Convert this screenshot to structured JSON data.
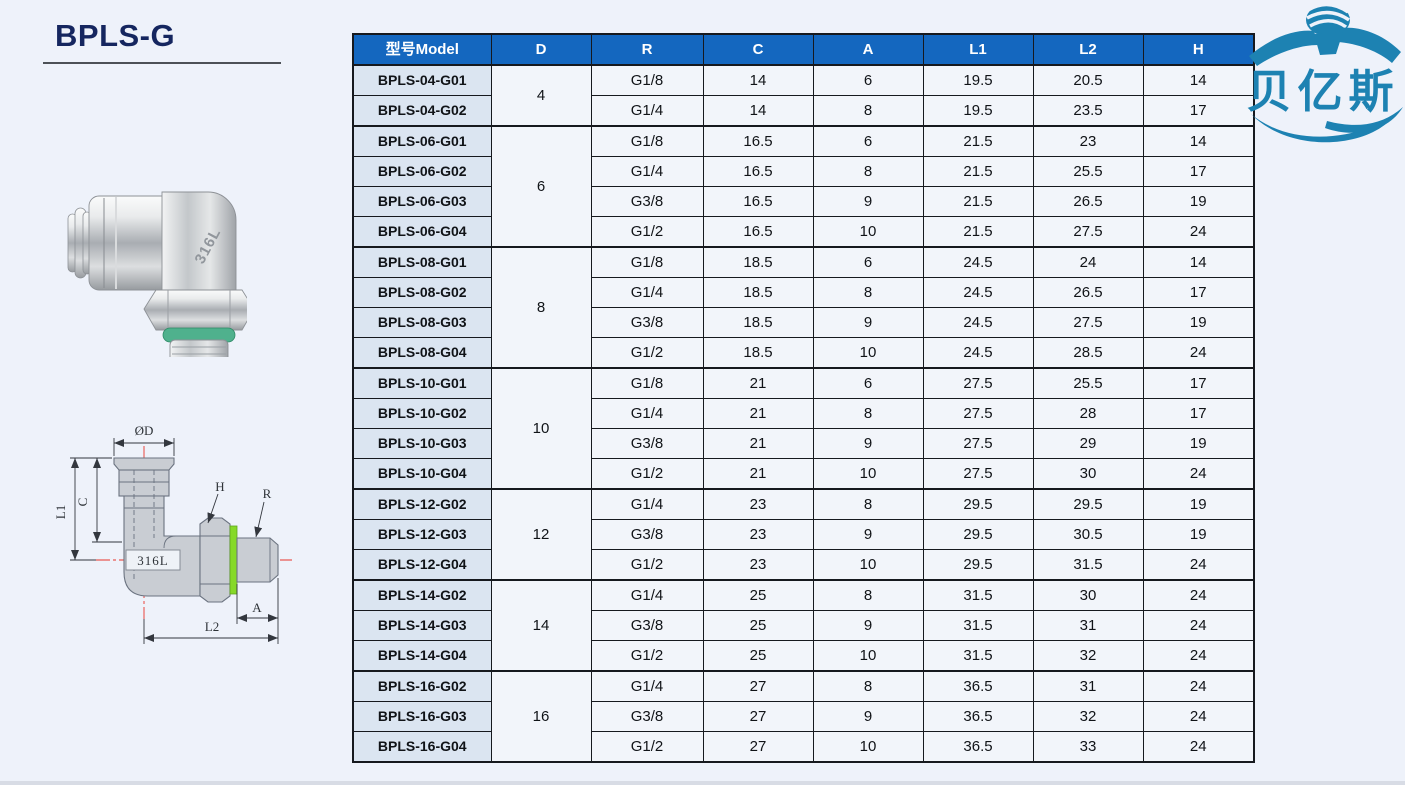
{
  "page": {
    "title": "BPLS-G",
    "background": "#eef2fa",
    "bottom_strip_color": "#d8dce5",
    "title_color": "#15265f"
  },
  "logo": {
    "text": "贝亿斯",
    "color": "#1d82b2"
  },
  "photo": {
    "stamp": "316L",
    "oring_color": "#4fb18d"
  },
  "drawing": {
    "stamp": "316L",
    "labels": {
      "diameter": "ØD",
      "c": "C",
      "l1": "L1",
      "h": "H",
      "r": "R",
      "a": "A",
      "l2": "L2"
    },
    "centerline_color": "#e8342b",
    "highlight_green": "#86d928"
  },
  "table": {
    "columns": [
      "型号Model",
      "D",
      "R",
      "C",
      "A",
      "L1",
      "L2",
      "H"
    ],
    "header_bg": "#1467bf",
    "header_text_color": "#ffffff",
    "model_cell_bg": "#dbe5f1",
    "cell_bg": "#f2f5fa",
    "groups": [
      {
        "d": "4",
        "rows": [
          {
            "model": "BPLS-04-G01",
            "r": "G1/8",
            "c": "14",
            "a": "6",
            "l1": "19.5",
            "l2": "20.5",
            "h": "14"
          },
          {
            "model": "BPLS-04-G02",
            "r": "G1/4",
            "c": "14",
            "a": "8",
            "l1": "19.5",
            "l2": "23.5",
            "h": "17"
          }
        ]
      },
      {
        "d": "6",
        "rows": [
          {
            "model": "BPLS-06-G01",
            "r": "G1/8",
            "c": "16.5",
            "a": "6",
            "l1": "21.5",
            "l2": "23",
            "h": "14"
          },
          {
            "model": "BPLS-06-G02",
            "r": "G1/4",
            "c": "16.5",
            "a": "8",
            "l1": "21.5",
            "l2": "25.5",
            "h": "17"
          },
          {
            "model": "BPLS-06-G03",
            "r": "G3/8",
            "c": "16.5",
            "a": "9",
            "l1": "21.5",
            "l2": "26.5",
            "h": "19"
          },
          {
            "model": "BPLS-06-G04",
            "r": "G1/2",
            "c": "16.5",
            "a": "10",
            "l1": "21.5",
            "l2": "27.5",
            "h": "24"
          }
        ]
      },
      {
        "d": "8",
        "rows": [
          {
            "model": "BPLS-08-G01",
            "r": "G1/8",
            "c": "18.5",
            "a": "6",
            "l1": "24.5",
            "l2": "24",
            "h": "14"
          },
          {
            "model": "BPLS-08-G02",
            "r": "G1/4",
            "c": "18.5",
            "a": "8",
            "l1": "24.5",
            "l2": "26.5",
            "h": "17"
          },
          {
            "model": "BPLS-08-G03",
            "r": "G3/8",
            "c": "18.5",
            "a": "9",
            "l1": "24.5",
            "l2": "27.5",
            "h": "19"
          },
          {
            "model": "BPLS-08-G04",
            "r": "G1/2",
            "c": "18.5",
            "a": "10",
            "l1": "24.5",
            "l2": "28.5",
            "h": "24"
          }
        ]
      },
      {
        "d": "10",
        "rows": [
          {
            "model": "BPLS-10-G01",
            "r": "G1/8",
            "c": "21",
            "a": "6",
            "l1": "27.5",
            "l2": "25.5",
            "h": "17"
          },
          {
            "model": "BPLS-10-G02",
            "r": "G1/4",
            "c": "21",
            "a": "8",
            "l1": "27.5",
            "l2": "28",
            "h": "17"
          },
          {
            "model": "BPLS-10-G03",
            "r": "G3/8",
            "c": "21",
            "a": "9",
            "l1": "27.5",
            "l2": "29",
            "h": "19"
          },
          {
            "model": "BPLS-10-G04",
            "r": "G1/2",
            "c": "21",
            "a": "10",
            "l1": "27.5",
            "l2": "30",
            "h": "24"
          }
        ]
      },
      {
        "d": "12",
        "rows": [
          {
            "model": "BPLS-12-G02",
            "r": "G1/4",
            "c": "23",
            "a": "8",
            "l1": "29.5",
            "l2": "29.5",
            "h": "19"
          },
          {
            "model": "BPLS-12-G03",
            "r": "G3/8",
            "c": "23",
            "a": "9",
            "l1": "29.5",
            "l2": "30.5",
            "h": "19"
          },
          {
            "model": "BPLS-12-G04",
            "r": "G1/2",
            "c": "23",
            "a": "10",
            "l1": "29.5",
            "l2": "31.5",
            "h": "24"
          }
        ]
      },
      {
        "d": "14",
        "rows": [
          {
            "model": "BPLS-14-G02",
            "r": "G1/4",
            "c": "25",
            "a": "8",
            "l1": "31.5",
            "l2": "30",
            "h": "24"
          },
          {
            "model": "BPLS-14-G03",
            "r": "G3/8",
            "c": "25",
            "a": "9",
            "l1": "31.5",
            "l2": "31",
            "h": "24"
          },
          {
            "model": "BPLS-14-G04",
            "r": "G1/2",
            "c": "25",
            "a": "10",
            "l1": "31.5",
            "l2": "32",
            "h": "24"
          }
        ]
      },
      {
        "d": "16",
        "rows": [
          {
            "model": "BPLS-16-G02",
            "r": "G1/4",
            "c": "27",
            "a": "8",
            "l1": "36.5",
            "l2": "31",
            "h": "24"
          },
          {
            "model": "BPLS-16-G03",
            "r": "G3/8",
            "c": "27",
            "a": "9",
            "l1": "36.5",
            "l2": "32",
            "h": "24"
          },
          {
            "model": "BPLS-16-G04",
            "r": "G1/2",
            "c": "27",
            "a": "10",
            "l1": "36.5",
            "l2": "33",
            "h": "24"
          }
        ]
      }
    ]
  }
}
